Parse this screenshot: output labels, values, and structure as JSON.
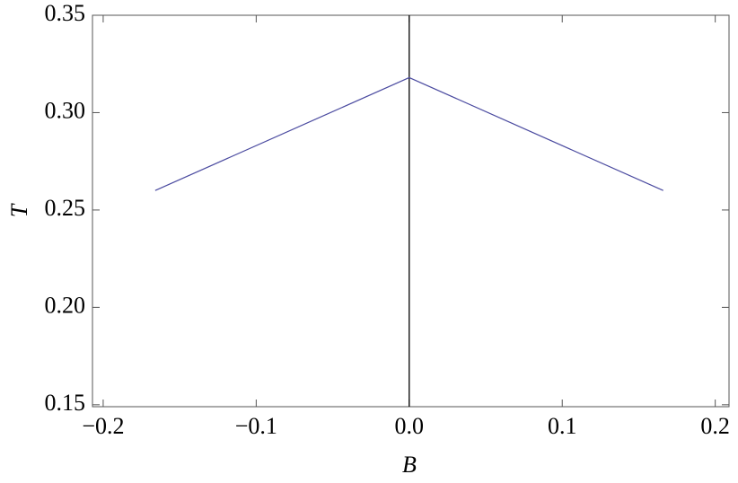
{
  "chart_data": {
    "type": "line",
    "x_label": "B",
    "y_label": "T",
    "series": [
      {
        "color": "#4b4ba0",
        "x": [
          -0.166,
          0,
          0.166
        ],
        "values": [
          0.26,
          0.318,
          0.26
        ]
      }
    ],
    "xlim": [
      -0.207,
      0.209
    ],
    "ylim": [
      0.149,
      0.35
    ],
    "xticks": [
      {
        "value": -0.2,
        "label": "−0.2"
      },
      {
        "value": -0.1,
        "label": "−0.1"
      },
      {
        "value": 0,
        "label": "0.0"
      },
      0.1,
      0.2
    ],
    "yticks": [
      0.15,
      {
        "value": 0.2,
        "label": "0.20"
      },
      0.25,
      {
        "value": 0.3,
        "label": "0.30"
      },
      0.35
    ]
  }
}
